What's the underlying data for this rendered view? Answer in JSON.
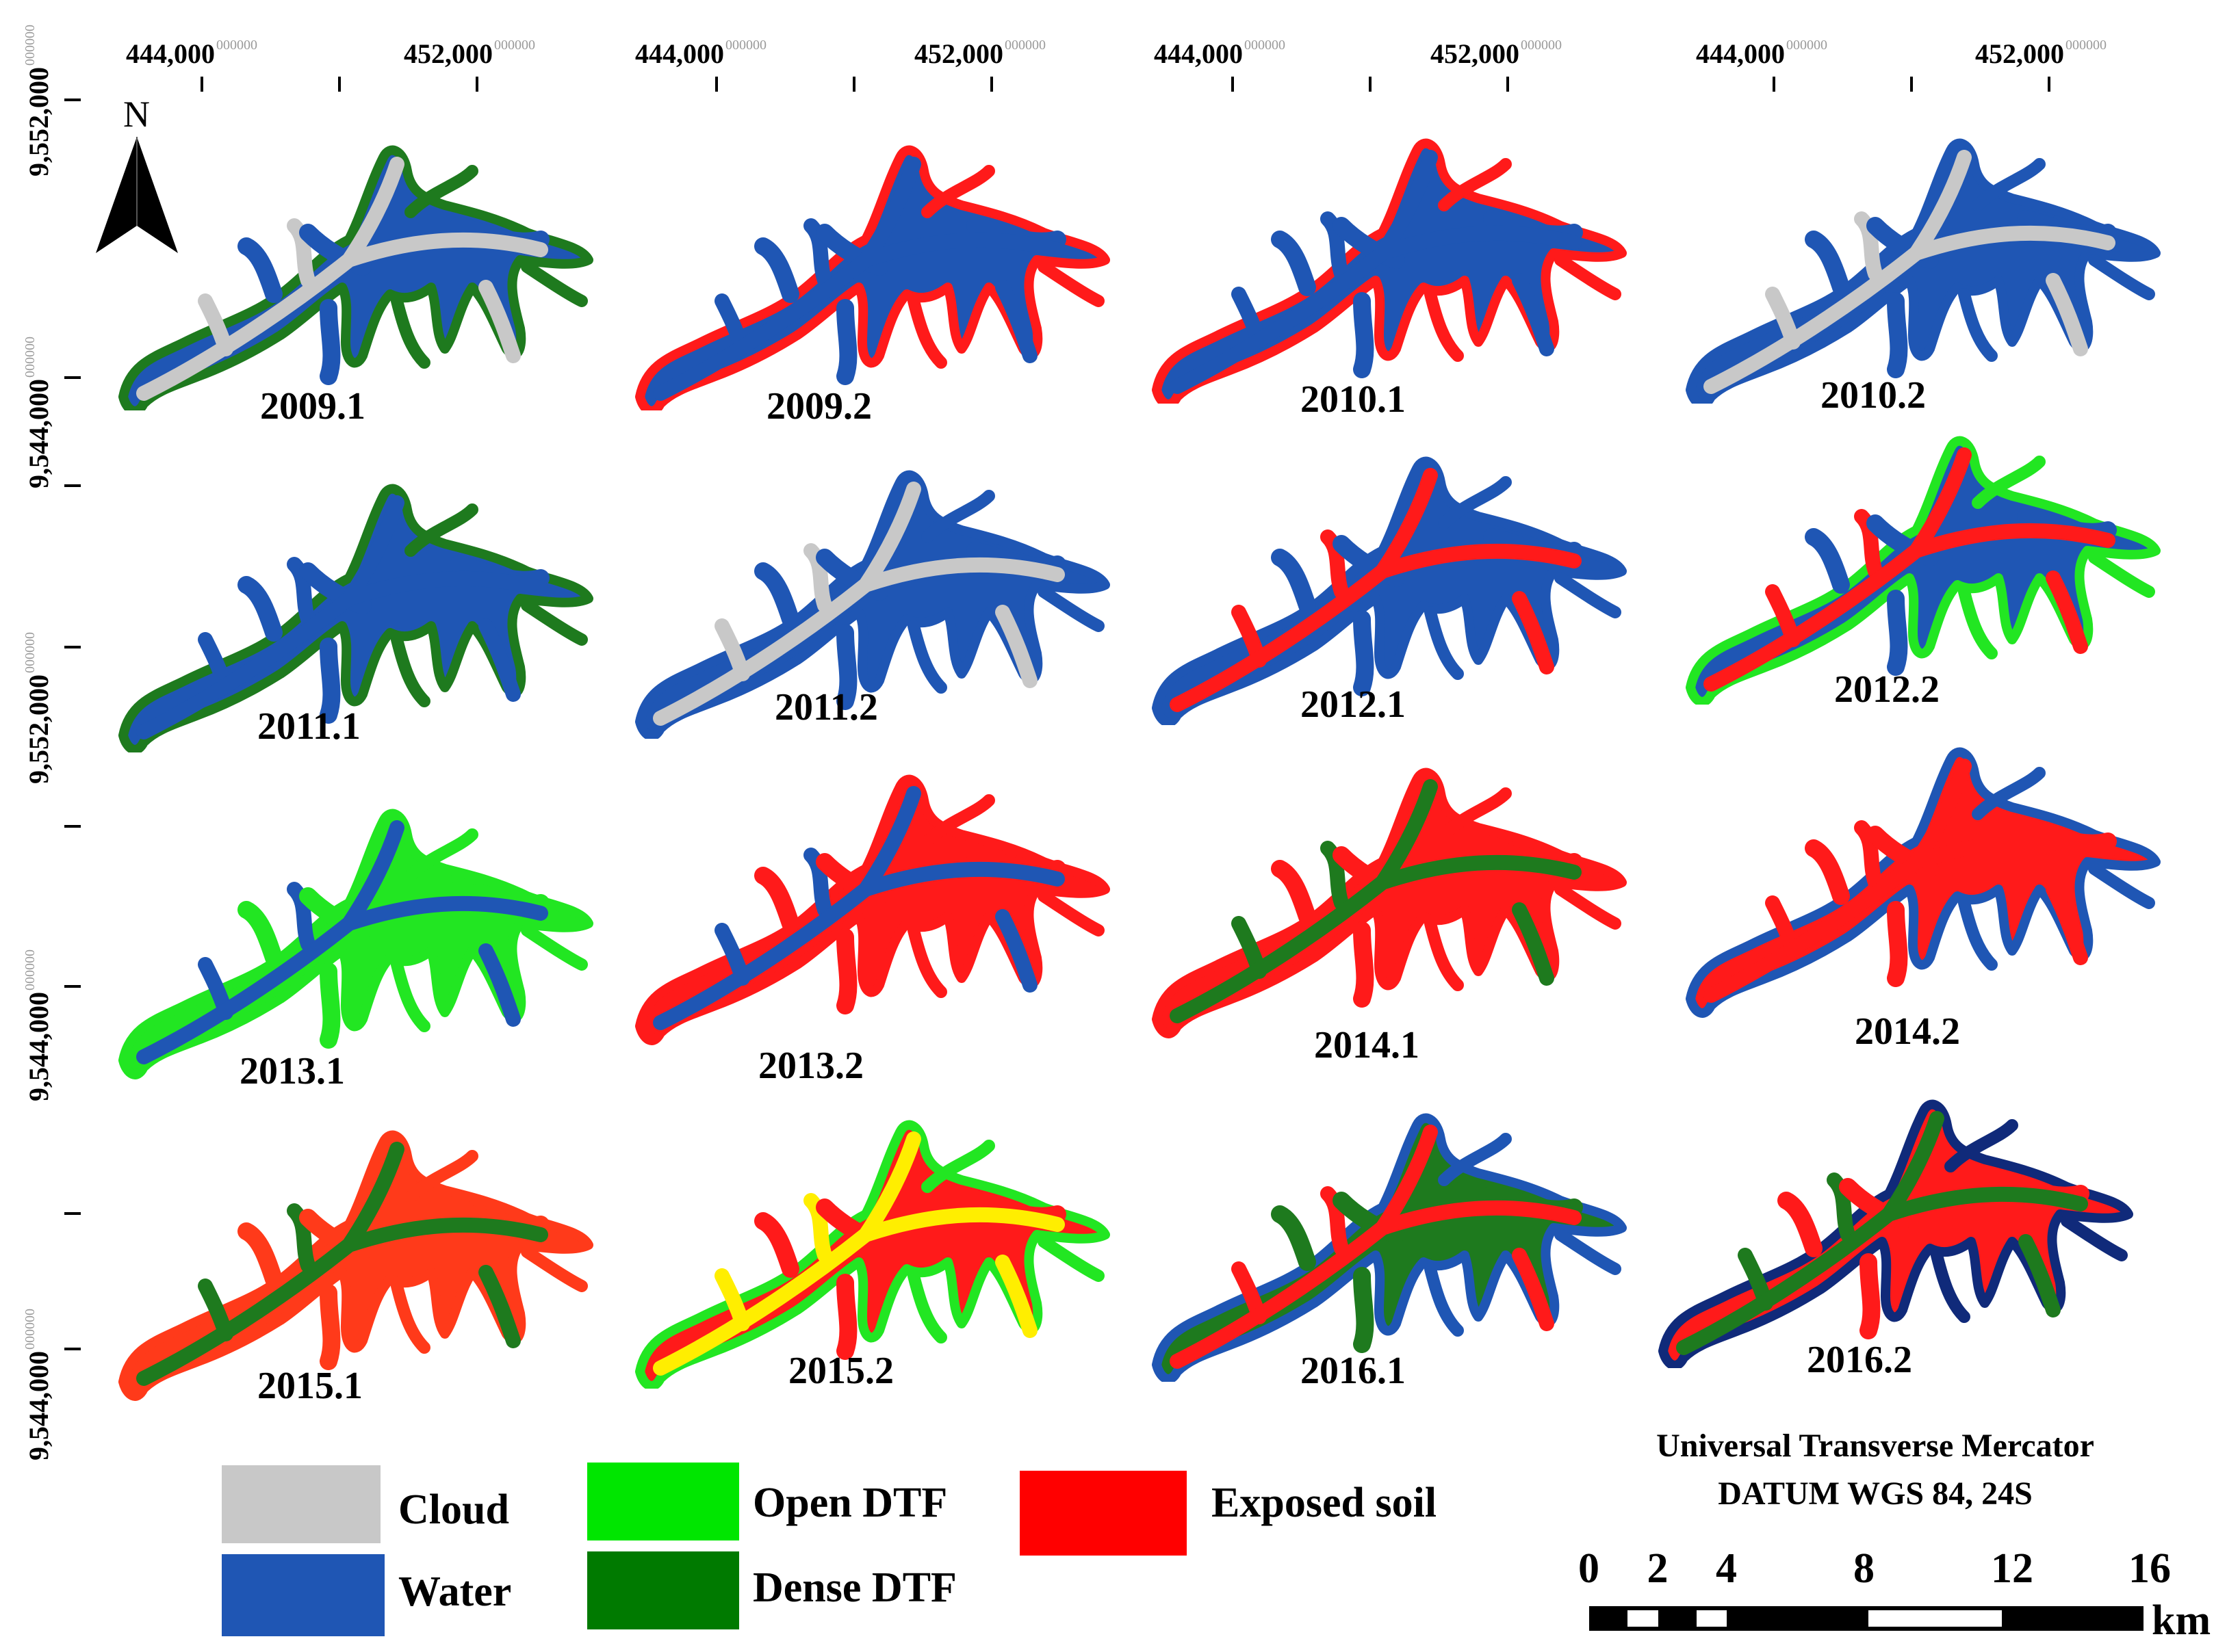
{
  "x_ticks": [
    {
      "label": "444,000",
      "suffix": "000000"
    },
    {
      "label": "452,000",
      "suffix": "000000"
    }
  ],
  "y_ticks": [
    {
      "label": "9,552,000",
      "suffix": "000000"
    },
    {
      "label": "9,544,000",
      "suffix": "000000"
    }
  ],
  "north_arrow": {
    "letter": "N",
    "icon": "north-arrow-icon"
  },
  "panels": [
    {
      "label": "2009.1",
      "palette": [
        "#1f56b4",
        "#c8c8c8",
        "#1e7a1e"
      ]
    },
    {
      "label": "2009.2",
      "palette": [
        "#1f56b4",
        "#1f56b4",
        "#ff1a1a"
      ]
    },
    {
      "label": "2010.1",
      "palette": [
        "#1f56b4",
        "#1f56b4",
        "#ff1a1a"
      ]
    },
    {
      "label": "2010.2",
      "palette": [
        "#1f56b4",
        "#c8c8c8",
        "#1f56b4"
      ]
    },
    {
      "label": "2011.1",
      "palette": [
        "#1f56b4",
        "#1f56b4",
        "#1e7a1e"
      ]
    },
    {
      "label": "2011.2",
      "palette": [
        "#1f56b4",
        "#c8c8c8",
        "#1f56b4"
      ]
    },
    {
      "label": "2012.1",
      "palette": [
        "#1f56b4",
        "#ff1a1a",
        "#1f56b4"
      ]
    },
    {
      "label": "2012.2",
      "palette": [
        "#1f56b4",
        "#ff1a1a",
        "#22e622"
      ]
    },
    {
      "label": "2013.1",
      "palette": [
        "#22e622",
        "#1f56b4",
        "#22e622"
      ]
    },
    {
      "label": "2013.2",
      "palette": [
        "#ff1a1a",
        "#1f56b4",
        "#ff1a1a"
      ]
    },
    {
      "label": "2014.1",
      "palette": [
        "#ff1a1a",
        "#1e7a1e",
        "#ff1a1a"
      ]
    },
    {
      "label": "2014.2",
      "palette": [
        "#ff1a1a",
        "#ff1a1a",
        "#1f56b4"
      ]
    },
    {
      "label": "2015.1",
      "palette": [
        "#ff3a1a",
        "#1e7a1e",
        "#ff3a1a"
      ]
    },
    {
      "label": "2015.2",
      "palette": [
        "#ff1a1a",
        "#ffee00",
        "#22e622"
      ]
    },
    {
      "label": "2016.1",
      "palette": [
        "#1e7a1e",
        "#ff1a1a",
        "#1f56b4"
      ]
    },
    {
      "label": "2016.2",
      "palette": [
        "#ff1a1a",
        "#1e7a1e",
        "#102a7a"
      ]
    }
  ],
  "legend": [
    {
      "label": "Cloud",
      "color": "#c8c8c8"
    },
    {
      "label": "Water",
      "color": "#1f56b4"
    },
    {
      "label": "Open DTF",
      "color": "#00e600"
    },
    {
      "label": "Dense DTF",
      "color": "#007a00"
    },
    {
      "label": "Exposed soil",
      "color": "#ff0000"
    }
  ],
  "projection": {
    "line1": "Universal Transverse Mercator",
    "line2": "DATUM WGS 84, 24S"
  },
  "scale_bar": {
    "labels": [
      "0",
      "2",
      "4",
      "8",
      "12",
      "16"
    ],
    "values": [
      0,
      2,
      4,
      8,
      12,
      16
    ],
    "unit": "km"
  }
}
